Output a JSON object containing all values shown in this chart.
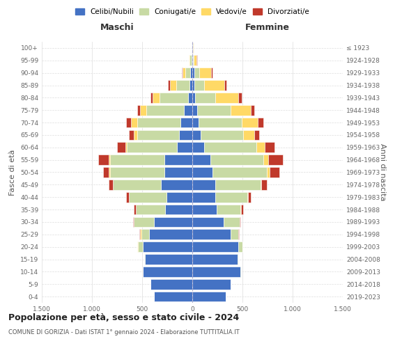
{
  "age_groups": [
    "0-4",
    "5-9",
    "10-14",
    "15-19",
    "20-24",
    "25-29",
    "30-34",
    "35-39",
    "40-44",
    "45-49",
    "50-54",
    "55-59",
    "60-64",
    "65-69",
    "70-74",
    "75-79",
    "80-84",
    "85-89",
    "90-94",
    "95-99",
    "100+"
  ],
  "birth_years": [
    "2019-2023",
    "2014-2018",
    "2009-2013",
    "2004-2008",
    "1999-2003",
    "1994-1998",
    "1989-1993",
    "1984-1988",
    "1979-1983",
    "1974-1978",
    "1969-1973",
    "1964-1968",
    "1959-1963",
    "1954-1958",
    "1949-1953",
    "1944-1948",
    "1939-1943",
    "1934-1938",
    "1929-1933",
    "1924-1928",
    "≤ 1923"
  ],
  "male": {
    "celibi": [
      380,
      420,
      490,
      470,
      490,
      430,
      380,
      270,
      260,
      310,
      280,
      280,
      150,
      130,
      120,
      80,
      45,
      30,
      20,
      10,
      5
    ],
    "coniugati": [
      0,
      0,
      5,
      10,
      50,
      80,
      200,
      290,
      370,
      480,
      540,
      540,
      500,
      420,
      430,
      380,
      280,
      130,
      50,
      15,
      2
    ],
    "vedovi": [
      0,
      0,
      0,
      0,
      10,
      10,
      0,
      0,
      0,
      5,
      10,
      15,
      20,
      30,
      60,
      60,
      70,
      60,
      30,
      10,
      0
    ],
    "divorziati": [
      0,
      0,
      0,
      0,
      0,
      5,
      10,
      20,
      30,
      40,
      60,
      100,
      80,
      50,
      50,
      30,
      20,
      20,
      5,
      0,
      0
    ]
  },
  "female": {
    "celibi": [
      330,
      380,
      480,
      450,
      460,
      380,
      310,
      240,
      230,
      230,
      200,
      180,
      120,
      80,
      60,
      50,
      30,
      20,
      20,
      5,
      5
    ],
    "coniugati": [
      0,
      0,
      5,
      10,
      40,
      80,
      160,
      240,
      320,
      450,
      540,
      530,
      520,
      430,
      430,
      330,
      200,
      100,
      50,
      10,
      2
    ],
    "vedovi": [
      0,
      0,
      0,
      0,
      0,
      0,
      0,
      5,
      5,
      10,
      30,
      50,
      80,
      110,
      160,
      200,
      230,
      200,
      120,
      30,
      5
    ],
    "divorziati": [
      0,
      0,
      0,
      0,
      0,
      5,
      10,
      20,
      30,
      50,
      100,
      140,
      100,
      50,
      60,
      40,
      30,
      20,
      10,
      5,
      0
    ]
  },
  "colors": {
    "celibi": "#4472c4",
    "coniugati": "#c8daa4",
    "vedovi": "#ffd966",
    "divorziati": "#c0392b"
  },
  "title": "Popolazione per età, sesso e stato civile - 2024",
  "subtitle": "COMUNE DI GORIZIA - Dati ISTAT 1° gennaio 2024 - Elaborazione TUTTITALIA.IT",
  "xlabel_left": "Maschi",
  "xlabel_right": "Femmine",
  "ylabel_left": "Fasce di età",
  "ylabel_right": "Anni di nascita",
  "xlim": 1500,
  "xticks": [
    -1500,
    -1000,
    -500,
    0,
    500,
    1000,
    1500
  ],
  "xticklabels": [
    "1.500",
    "1.000",
    "500",
    "0",
    "500",
    "1.000",
    "1.500"
  ],
  "legend_labels": [
    "Celibi/Nubili",
    "Coniugati/e",
    "Vedovi/e",
    "Divorziati/e"
  ],
  "legend_colors": [
    "#4472c4",
    "#c8daa4",
    "#ffd966",
    "#c0392b"
  ],
  "background_color": "#ffffff",
  "bar_height": 0.82
}
